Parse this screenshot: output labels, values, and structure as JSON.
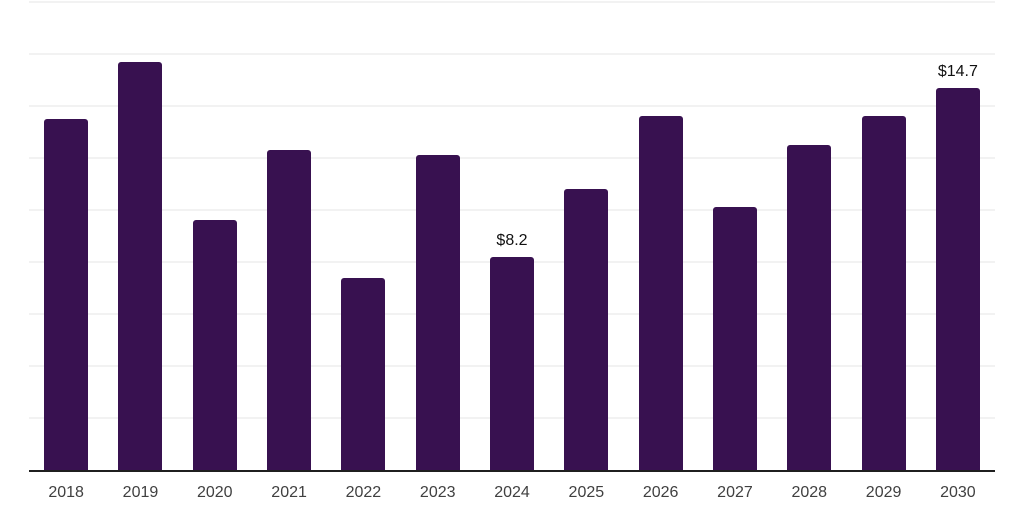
{
  "chart_data": {
    "type": "bar",
    "categories": [
      "2018",
      "2019",
      "2020",
      "2021",
      "2022",
      "2023",
      "2024",
      "2025",
      "2026",
      "2027",
      "2028",
      "2029",
      "2030"
    ],
    "values": [
      13.5,
      15.7,
      9.6,
      12.3,
      7.4,
      12.1,
      8.2,
      10.8,
      13.6,
      10.1,
      12.5,
      13.6,
      14.7
    ],
    "data_labels": [
      {
        "category": "2024",
        "text": "$8.2"
      },
      {
        "category": "2030",
        "text": "$14.7"
      }
    ],
    "title": "",
    "xlabel": "",
    "ylabel": "",
    "ylim": [
      0,
      18
    ],
    "gridline_step": 2,
    "grid": true,
    "legend": false,
    "y_tick_labels_visible": false,
    "colors": {
      "bar": "#381150",
      "axis_line": "#1f1f1f",
      "gridline": "#f2f2f2",
      "x_tick_label": "#404040",
      "data_label": "#111111",
      "background": "#ffffff"
    }
  }
}
